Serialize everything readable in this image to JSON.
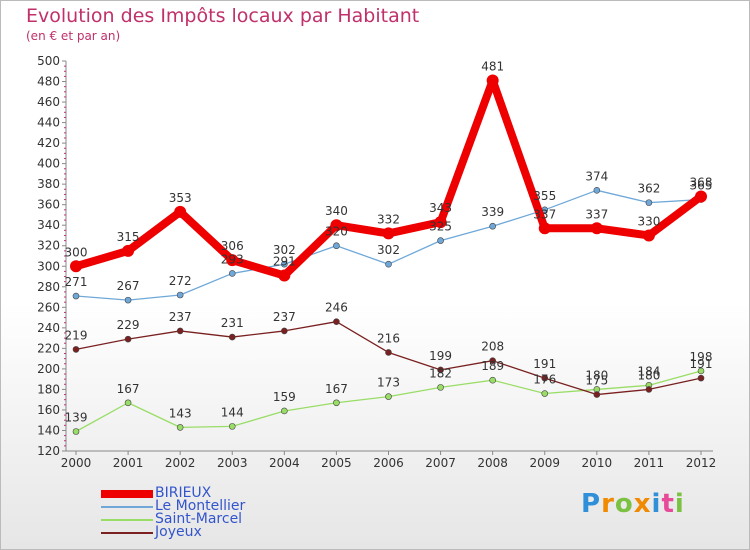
{
  "header": {
    "title": "Evolution des Impôts locaux par Habitant",
    "subtitle": "(en € et par an)"
  },
  "legend": {
    "items": [
      {
        "label": "BIRIEUX",
        "color": "#ee0000"
      },
      {
        "label": "Le Montellier",
        "color": "#6fa8d8"
      },
      {
        "label": "Saint-Marcel",
        "color": "#99dd66"
      },
      {
        "label": "Joyeux",
        "color": "#7a2020"
      }
    ]
  },
  "logo": {
    "letters": [
      "P",
      "r",
      "o",
      "x",
      "i",
      "t",
      "i"
    ],
    "colors": [
      "#2f8fd8",
      "#f08a00",
      "#7cc242",
      "#f08a00",
      "#2f8fd8",
      "#e84a9a",
      "#7cc242"
    ]
  },
  "chart_data": {
    "type": "line",
    "title": "Evolution des Impôts locaux par Habitant",
    "subtitle": "(en € et par an)",
    "x": [
      "2000",
      "2001",
      "2002",
      "2003",
      "2004",
      "2005",
      "2006",
      "2007",
      "2008",
      "2009",
      "2010",
      "2011",
      "2012"
    ],
    "ylim": [
      120,
      500
    ],
    "yticks": [
      120,
      140,
      160,
      180,
      200,
      220,
      240,
      260,
      280,
      300,
      320,
      340,
      360,
      380,
      400,
      420,
      440,
      460,
      480,
      500
    ],
    "grid": false,
    "legend_position": "bottom-left",
    "series": [
      {
        "name": "BIRIEUX",
        "color": "#ee0000",
        "values": [
          300,
          315,
          353,
          306,
          291,
          340,
          332,
          343,
          481,
          337,
          337,
          330,
          368
        ],
        "labels": [
          "300",
          "315",
          "353",
          "306",
          "291",
          "340",
          "332",
          "343",
          "481",
          "337",
          "337",
          "330",
          "368"
        ]
      },
      {
        "name": "Le Montellier",
        "color": "#6fa8d8",
        "values": [
          271,
          267,
          272,
          293,
          302,
          320,
          302,
          325,
          339,
          355,
          374,
          362,
          365
        ],
        "labels": [
          "271",
          "267",
          "272",
          "293",
          "302",
          "320",
          "302",
          "325",
          "339",
          "355",
          "374",
          "362",
          "365"
        ]
      },
      {
        "name": "Saint-Marcel",
        "color": "#99dd66",
        "values": [
          139,
          167,
          143,
          144,
          159,
          167,
          173,
          182,
          189,
          176,
          180,
          184,
          198
        ],
        "labels": [
          "139",
          "167",
          "143",
          "144",
          "159",
          "167",
          "173",
          "182",
          "189",
          "176",
          "180",
          "184",
          "198"
        ]
      },
      {
        "name": "Joyeux",
        "color": "#7a2020",
        "values": [
          219,
          229,
          237,
          231,
          237,
          246,
          216,
          199,
          208,
          191,
          175,
          180,
          191
        ],
        "labels": [
          "219",
          "229",
          "237",
          "231",
          "237",
          "246",
          "216",
          "199",
          "208",
          "191",
          "175",
          "180",
          "191"
        ]
      }
    ]
  }
}
